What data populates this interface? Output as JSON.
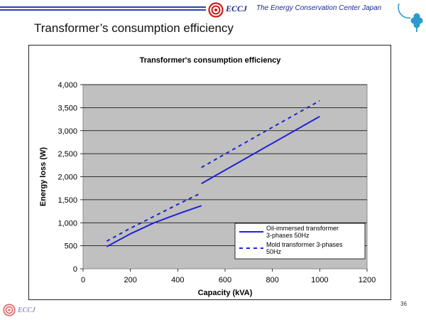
{
  "header": {
    "org_short": "ECCJ",
    "org_name": "The Energy Conservation Center Japan"
  },
  "slide": {
    "title": "Transformer’s consumption efficiency",
    "page_number": "36"
  },
  "footer": {
    "org_short": "ECCJ"
  },
  "colors": {
    "series": "#1f22d6",
    "plot_bg": "#c0c0c0",
    "brand": "#1b2a8f",
    "logo_red": "#cc1b1b",
    "clover": "#2b9bd0"
  },
  "chart_data": {
    "type": "line",
    "title": "Transformer's consumption efficiency",
    "xlabel": "Capacity (kVA)",
    "ylabel": "Energy loss (W)",
    "xlim": [
      0,
      1200
    ],
    "ylim": [
      0,
      4000
    ],
    "xticks": [
      "0",
      "200",
      "400",
      "600",
      "800",
      "1000",
      "1200"
    ],
    "yticks": [
      "0",
      "500",
      "1,000",
      "1,500",
      "2,000",
      "2,500",
      "3,000",
      "3,500",
      "4,000"
    ],
    "grid": true,
    "legend_position": "bottom-right",
    "series": [
      {
        "name": "Oil-immersed transformer 3-phases 50Hz",
        "legend_lines": [
          "Oil-immersed transformer",
          "3-phases 50Hz"
        ],
        "style": "solid",
        "segments": [
          [
            [
              100,
              480
            ],
            [
              200,
              760
            ],
            [
              300,
              1000
            ],
            [
              400,
              1190
            ],
            [
              500,
              1370
            ]
          ],
          [
            [
              500,
              1850
            ],
            [
              750,
              2580
            ],
            [
              1000,
              3310
            ]
          ]
        ]
      },
      {
        "name": "Mold transformer 3-phases 50Hz",
        "legend_lines": [
          "Mold transformer 3-phases",
          "50Hz"
        ],
        "style": "dashed",
        "segments": [
          [
            [
              100,
              600
            ],
            [
              200,
              880
            ],
            [
              300,
              1140
            ],
            [
              400,
              1400
            ],
            [
              500,
              1650
            ]
          ],
          [
            [
              500,
              2200
            ],
            [
              750,
              2930
            ],
            [
              1000,
              3650
            ]
          ]
        ]
      }
    ]
  }
}
